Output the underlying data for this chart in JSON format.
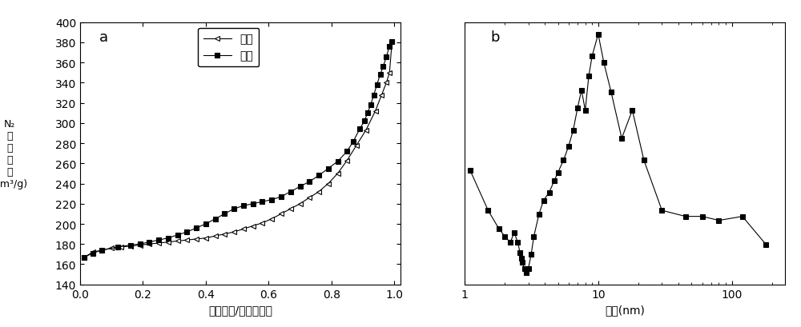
{
  "adsorption_x": [
    0.014,
    0.04,
    0.07,
    0.1,
    0.13,
    0.16,
    0.19,
    0.22,
    0.25,
    0.28,
    0.31,
    0.34,
    0.37,
    0.4,
    0.43,
    0.46,
    0.49,
    0.52,
    0.55,
    0.58,
    0.61,
    0.64,
    0.67,
    0.7,
    0.73,
    0.76,
    0.79,
    0.82,
    0.85,
    0.88,
    0.91,
    0.94,
    0.96,
    0.975,
    0.985,
    0.993
  ],
  "adsorption_y": [
    167,
    172,
    174,
    176,
    177,
    178,
    179,
    180,
    181,
    182,
    183,
    184,
    185,
    186,
    188,
    190,
    192,
    195,
    198,
    201,
    205,
    210,
    215,
    220,
    226,
    232,
    240,
    250,
    263,
    278,
    293,
    312,
    328,
    340,
    350,
    381
  ],
  "desorption_x": [
    0.993,
    0.985,
    0.975,
    0.965,
    0.955,
    0.945,
    0.935,
    0.925,
    0.915,
    0.905,
    0.89,
    0.87,
    0.85,
    0.82,
    0.79,
    0.76,
    0.73,
    0.7,
    0.67,
    0.64,
    0.61,
    0.58,
    0.55,
    0.52,
    0.49,
    0.46,
    0.43,
    0.4,
    0.37,
    0.34,
    0.31,
    0.28,
    0.25,
    0.22,
    0.19,
    0.16,
    0.12,
    0.07,
    0.04,
    0.014
  ],
  "desorption_y": [
    381,
    376,
    366,
    356,
    348,
    338,
    328,
    318,
    310,
    302,
    294,
    282,
    272,
    262,
    255,
    248,
    242,
    237,
    232,
    227,
    224,
    222,
    220,
    218,
    215,
    210,
    205,
    200,
    196,
    192,
    189,
    186,
    184,
    182,
    180,
    179,
    177,
    174,
    171,
    167
  ],
  "psd_x": [
    1.1,
    1.5,
    1.8,
    2.0,
    2.2,
    2.35,
    2.5,
    2.6,
    2.65,
    2.7,
    2.8,
    2.9,
    3.0,
    3.15,
    3.3,
    3.6,
    3.9,
    4.3,
    4.7,
    5.0,
    5.5,
    6.0,
    6.5,
    7.0,
    7.5,
    8.0,
    8.5,
    9.0,
    10.0,
    11.0,
    12.5,
    15.0,
    18.0,
    22.0,
    30.0,
    45.0,
    60.0,
    80.0,
    120.0,
    180.0
  ],
  "psd_y": [
    0.62,
    0.52,
    0.475,
    0.455,
    0.44,
    0.465,
    0.44,
    0.415,
    0.4,
    0.39,
    0.375,
    0.365,
    0.375,
    0.41,
    0.455,
    0.51,
    0.545,
    0.565,
    0.595,
    0.615,
    0.645,
    0.68,
    0.72,
    0.775,
    0.82,
    0.77,
    0.855,
    0.905,
    0.96,
    0.89,
    0.815,
    0.7,
    0.77,
    0.645,
    0.52,
    0.505,
    0.505,
    0.495,
    0.505,
    0.435
  ],
  "xlabel_a": "实际压力/标准大气压",
  "xlabel_b": "直径(nm)",
  "label_ads": "吸附",
  "label_des": "脱附",
  "ylim_a": [
    140,
    400
  ],
  "xlim_a": [
    0.0,
    1.02
  ],
  "yticks_a": [
    140,
    160,
    180,
    200,
    220,
    240,
    260,
    280,
    300,
    320,
    340,
    360,
    380,
    400
  ],
  "bg_color": "#ffffff",
  "line_color": "#000000"
}
